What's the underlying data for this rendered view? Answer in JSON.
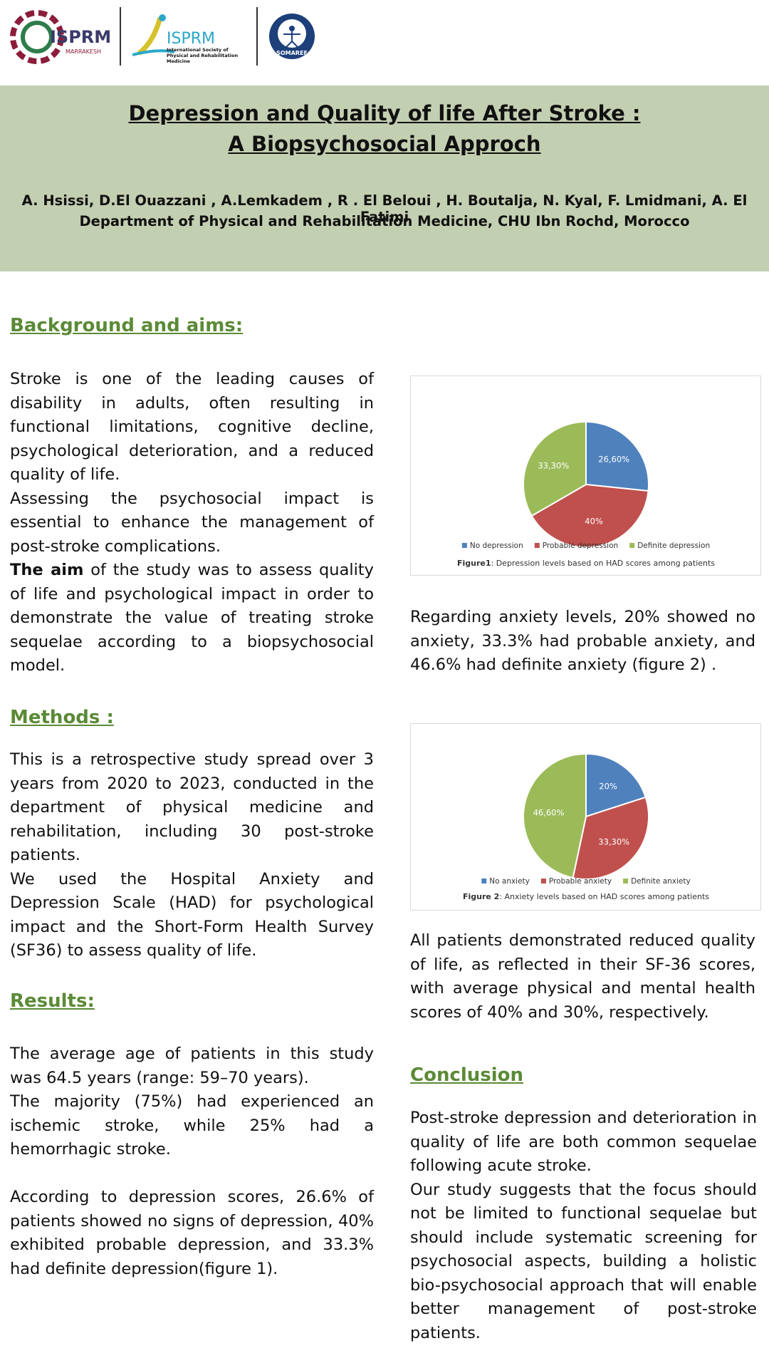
{
  "logos": {
    "congress": "ISPRM",
    "congress_sub": "MARRAKESH",
    "isprm": "ISPRM",
    "isprm_sub": "International Society of Physical and Rehabilitation Medicine",
    "somaref": "SOMAREF"
  },
  "header": {
    "title_line1": "Depression and Quality of life After Stroke :",
    "title_line2": "A Biopsychosocial Approch",
    "authors": "A. Hsissi, D.El Ouazzani , A.Lemkadem , R . El Beloui ,  H. Boutalja, N. Kyal,  F. Lmidmani, A. El Fatimi",
    "affiliation": "Department of Physical and  Rehabilitation Medicine, CHU Ibn Rochd, Morocco"
  },
  "background": {
    "heading": "Background and aims:",
    "p1": "Stroke is one of the leading causes of disability in adults, often resulting in functional limitations, cognitive decline, psychological deterioration, and a reduced quality of life.",
    "p2": "Assessing the psychosocial impact is essential to enhance the management of post-stroke complications.",
    "p3_bold": "The aim",
    "p3": " of the study was to assess quality of life and psychological impact in order to demonstrate the value of treating stroke sequelae according to a  biopsychosocial model."
  },
  "methods": {
    "heading": "Methods :",
    "p1": "This is a retrospective study spread over 3 years from 2020 to 2023, conducted  in the department of physical medicine and rehabilitation, including  30 post-stroke patients.",
    "p2": "We used the Hospital Anxiety and Depression Scale (HAD) for psychological impact and the Short-Form Health Survey (SF36)  to assess quality of life."
  },
  "results": {
    "heading": "Results:",
    "p1": "The average age of patients in this study was 64.5 years (range: 59–70 years).",
    "p2": "The majority (75%) had experienced an ischemic stroke, while 25% had a hemorrhagic stroke.",
    "p3": "According to depression scores, 26.6% of patients showed no signs of depression, 40% exhibited probable depression, and 33.3% had definite depression(figure 1).",
    "p4": "Regarding anxiety levels, 20% showed no anxiety, 33.3% had probable anxiety, and 46.6% had definite anxiety (figure 2) .",
    "p5": "All patients demonstrated reduced quality of life, as reflected in their SF-36 scores, with average physical and mental health scores of 40% and 30%, respectively."
  },
  "conclusion": {
    "heading": "Conclusion",
    "p1": "Post-stroke depression and deterioration in quality of life are both common sequelae  following acute stroke.",
    "p2": "Our study suggests that the focus should not be limited to functional sequelae but should include systematic screening for psychosocial aspects, building a holistic bio-psychosocial approach that will enable better management of post-stroke patients."
  },
  "chart_data": [
    {
      "type": "pie",
      "caption_label": "Figure1",
      "caption": ": Depression levels based on HAD scores among patients",
      "categories": [
        "No depression",
        "Probable depression",
        "Definite depression"
      ],
      "values": [
        26.6,
        40,
        33.3
      ],
      "value_labels": [
        "26,60%",
        "40%",
        "33,30%"
      ],
      "colors": [
        "#4f81bd",
        "#c0504d",
        "#9bbb59"
      ]
    },
    {
      "type": "pie",
      "caption_label": "Figure 2",
      "caption": ": Anxiety levels based on HAD scores among patients",
      "categories": [
        "No anxiety",
        "Probable anxiety",
        "Definite anxiety"
      ],
      "values": [
        20,
        33.3,
        46.6
      ],
      "value_labels": [
        "20%",
        "33,30%",
        "46,60%"
      ],
      "colors": [
        "#4f81bd",
        "#c0504d",
        "#9bbb59"
      ]
    }
  ]
}
